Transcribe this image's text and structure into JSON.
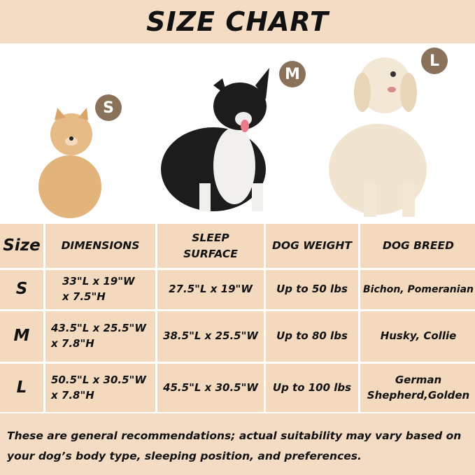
{
  "title": "SIZE CHART",
  "badges": {
    "small": "S",
    "medium": "M",
    "large": "L"
  },
  "colors": {
    "band": "#f3dcc3",
    "cell": "#f3d9bd",
    "badge": "#8a7159"
  },
  "table": {
    "headers": [
      "Size",
      "DIMENSIONS",
      "SLEEP SURFACE",
      "DOG WEIGHT",
      "DOG BREED"
    ],
    "rows": [
      {
        "size": "S",
        "dimensions": [
          "33\"L x 19\"W",
          "x 7.5\"H"
        ],
        "sleep_surface": "27.5\"L x 19\"W",
        "weight": "Up to 50 lbs",
        "breed": "Bichon, Pomeranian"
      },
      {
        "size": "M",
        "dimensions": [
          "43.5\"L x 25.5\"W",
          "x 7.8\"H"
        ],
        "sleep_surface": "38.5\"L x 25.5\"W",
        "weight": "Up to 80 lbs",
        "breed": "Husky, Collie"
      },
      {
        "size": "L",
        "dimensions": [
          "50.5\"L x 30.5\"W",
          "x 7.8\"H"
        ],
        "sleep_surface": "45.5\"L x 30.5\"W",
        "weight": "Up to 100 lbs",
        "breed": "German Shepherd,Golden"
      }
    ]
  },
  "footer": "These are general recommendations; actual suitability may vary based on your dog’s body type, sleeping position, and preferences."
}
